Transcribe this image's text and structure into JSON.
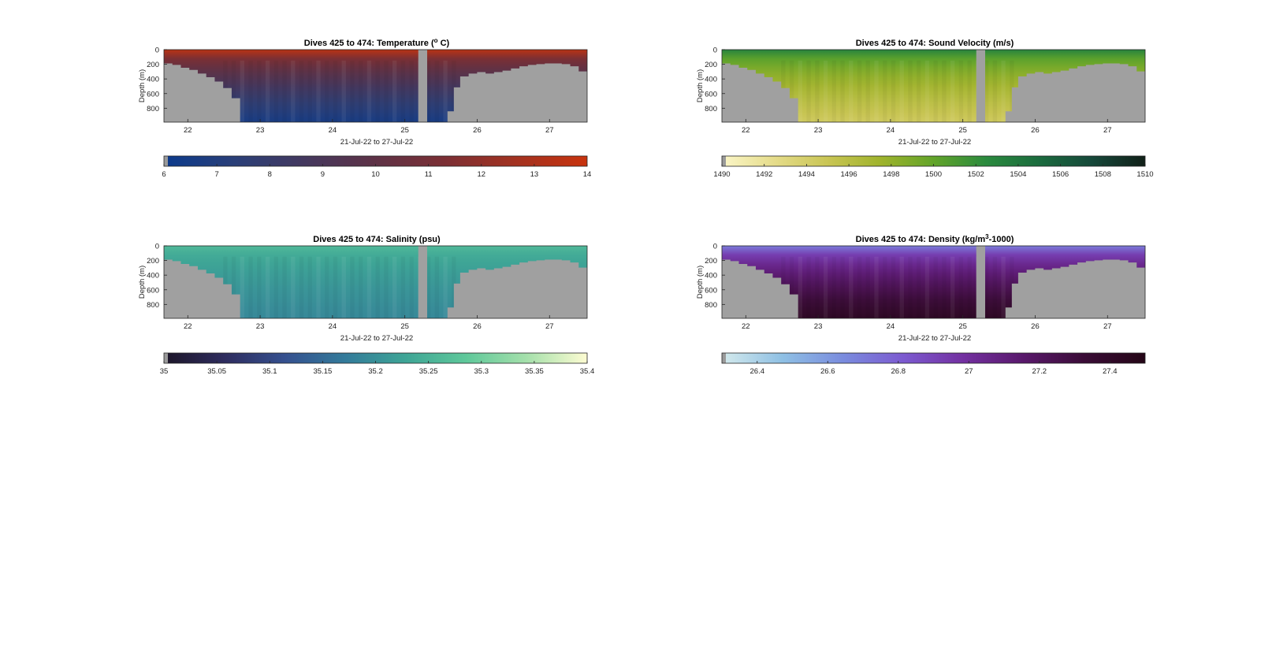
{
  "figure": {
    "background": "#ffffff",
    "land_color": "#a0a0a0",
    "gap_color": "#a0a0a0"
  },
  "chart_data": [
    {
      "type": "heatmap",
      "id": "temperature",
      "title": "Dives 425 to 474: Temperature (° C)",
      "title_parts": [
        "Dives 425 to 474: Temperature (",
        "o",
        " C)"
      ],
      "xlabel": "21-Jul-22 to 27-Jul-22",
      "ylabel": "Depth (m)",
      "xlim": [
        21.67,
        27.52
      ],
      "ylim": [
        0,
        990
      ],
      "x_ticks": [
        "22",
        "23",
        "24",
        "25",
        "26",
        "27"
      ],
      "y_ticks": [
        "0",
        "200",
        "400",
        "600",
        "800"
      ],
      "colorbar": {
        "range": [
          6,
          14
        ],
        "ticks": [
          "6",
          "7",
          "8",
          "9",
          "10",
          "11",
          "12",
          "13",
          "14"
        ],
        "colors": [
          "#0b3a8c",
          "#2a3f78",
          "#44385e",
          "#5e3246",
          "#7c2f34",
          "#a33220",
          "#c8330e"
        ]
      },
      "surface_value": 13.5,
      "deep_value": 6.6
    },
    {
      "type": "heatmap",
      "id": "sound-velocity",
      "title": "Dives 425 to 474: Sound Velocity (m/s)",
      "title_parts": [
        "Dives 425 to 474: Sound Velocity (m/s)",
        "",
        ""
      ],
      "xlabel": "21-Jul-22 to 27-Jul-22",
      "ylabel": "Depth (m)",
      "xlim": [
        21.67,
        27.52
      ],
      "ylim": [
        0,
        990
      ],
      "x_ticks": [
        "22",
        "23",
        "24",
        "25",
        "26",
        "27"
      ],
      "y_ticks": [
        "0",
        "200",
        "400",
        "600",
        "800"
      ],
      "colorbar": {
        "range": [
          1490,
          1510
        ],
        "ticks": [
          "1490",
          "1492",
          "1494",
          "1496",
          "1498",
          "1500",
          "1502",
          "1504",
          "1506",
          "1508",
          "1510"
        ],
        "colors": [
          "#fbf6c8",
          "#e5dc8a",
          "#c9c554",
          "#9fb32c",
          "#62a42a",
          "#2a8a3e",
          "#1b6b3e",
          "#16483a",
          "#112018"
        ]
      },
      "surface_value": 1503,
      "deep_value": 1494.5
    },
    {
      "type": "heatmap",
      "id": "salinity",
      "title": "Dives 425 to 474: Salinity (psu)",
      "title_parts": [
        "Dives 425 to 474: Salinity (psu)",
        "",
        ""
      ],
      "xlabel": "21-Jul-22 to 27-Jul-22",
      "ylabel": "Depth (m)",
      "xlim": [
        21.67,
        27.52
      ],
      "ylim": [
        0,
        990
      ],
      "x_ticks": [
        "22",
        "23",
        "24",
        "25",
        "26",
        "27"
      ],
      "y_ticks": [
        "0",
        "200",
        "400",
        "600",
        "800"
      ],
      "colorbar": {
        "range": [
          35,
          35.4
        ],
        "ticks": [
          "35",
          "35.05",
          "35.1",
          "35.15",
          "35.2",
          "35.25",
          "35.3",
          "35.35",
          "35.4"
        ],
        "colors": [
          "#1c1528",
          "#2e2c5e",
          "#35508f",
          "#337b9a",
          "#3ea596",
          "#5fc89a",
          "#a5e0ab",
          "#fdfcd2"
        ]
      },
      "surface_value": 35.26,
      "deep_value": 35.19
    },
    {
      "type": "heatmap",
      "id": "density",
      "title": "Dives 425 to 474: Density (kg/m³-1000)",
      "title_parts": [
        "Dives 425 to 474: Density (kg/m",
        "3",
        "-1000)"
      ],
      "xlabel": "21-Jul-22 to 27-Jul-22",
      "ylabel": "Depth (m)",
      "xlim": [
        21.67,
        27.52
      ],
      "ylim": [
        0,
        990
      ],
      "x_ticks": [
        "22",
        "23",
        "24",
        "25",
        "26",
        "27"
      ],
      "y_ticks": [
        "0",
        "200",
        "400",
        "600",
        "800"
      ],
      "colorbar": {
        "range": [
          26.3,
          27.5
        ],
        "ticks": [
          "26.4",
          "26.6",
          "26.8",
          "27",
          "27.2",
          "27.4"
        ],
        "colors": [
          "#d4eaec",
          "#8fc0e4",
          "#7a8cde",
          "#7c5ad0",
          "#7330a0",
          "#58186a",
          "#3a0c36",
          "#240616"
        ]
      },
      "surface_value": 26.7,
      "deep_value": 27.42
    }
  ]
}
